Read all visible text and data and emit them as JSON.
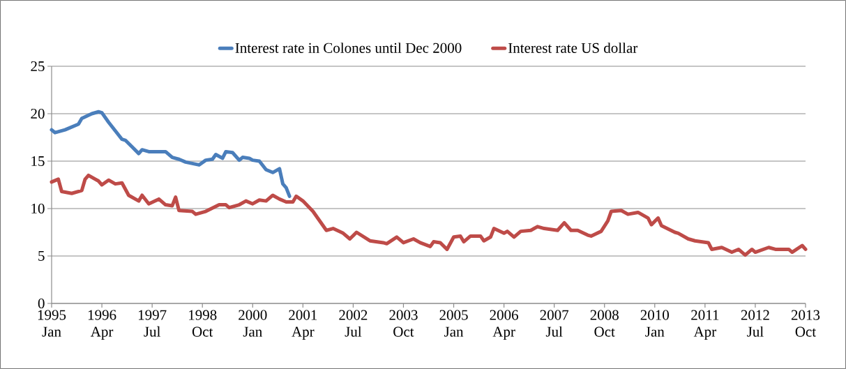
{
  "chart_data": {
    "type": "line",
    "xlim": [
      "1995-01",
      "2013-10"
    ],
    "xticks": [
      {
        "value": "1995-01",
        "label": "1995 Jan"
      },
      {
        "value": "1996-04",
        "label": "1996 Apr"
      },
      {
        "value": "1997-07",
        "label": "1997 Jul"
      },
      {
        "value": "1998-10",
        "label": "1998 Oct"
      },
      {
        "value": "2000-01",
        "label": "2000 Jan"
      },
      {
        "value": "2001-04",
        "label": "2001 Apr"
      },
      {
        "value": "2002-07",
        "label": "2002 Jul"
      },
      {
        "value": "2003-10",
        "label": "2003 Oct"
      },
      {
        "value": "2005-01",
        "label": "2005 Jan"
      },
      {
        "value": "2006-04",
        "label": "2006 Apr"
      },
      {
        "value": "2007-07",
        "label": "2007 Jul"
      },
      {
        "value": "2008-10",
        "label": "2008 Oct"
      },
      {
        "value": "2010-01",
        "label": "2010 Jan"
      },
      {
        "value": "2011-04",
        "label": "2011 Apr"
      },
      {
        "value": "2012-07",
        "label": "2012 Jul"
      },
      {
        "value": "2013-10",
        "label": "2013 Oct"
      }
    ],
    "ylim": [
      0,
      25
    ],
    "yticks": [
      0,
      5,
      10,
      15,
      20,
      25
    ],
    "grid": "y",
    "legend": "top",
    "marker": "none",
    "line_style": "solid",
    "series": [
      {
        "name": "Interest rate in Colones until Dec 2000",
        "color": "#4a7ebb",
        "x": [
          "1995-01",
          "1995-02",
          "1995-05",
          "1995-09",
          "1995-10",
          "1996-01",
          "1996-03",
          "1996-04",
          "1996-06",
          "1996-08",
          "1996-10",
          "1996-11",
          "1997-01",
          "1997-03",
          "1997-04",
          "1997-06",
          "1997-10",
          "1997-11",
          "1998-01",
          "1998-03",
          "1998-05",
          "1998-09",
          "1998-11",
          "1999-01",
          "1999-02",
          "1999-04",
          "1999-05",
          "1999-07",
          "1999-09",
          "1999-10",
          "1999-12",
          "2000-01",
          "2000-03",
          "2000-05",
          "2000-07",
          "2000-09",
          "2000-10",
          "2000-11",
          "2000-12"
        ],
        "values": [
          18.3,
          18.0,
          18.3,
          18.9,
          19.5,
          20.0,
          20.2,
          20.1,
          19.1,
          18.2,
          17.3,
          17.2,
          16.5,
          15.8,
          16.2,
          16.0,
          16.0,
          16.0,
          15.4,
          15.2,
          14.9,
          14.6,
          15.1,
          15.2,
          15.7,
          15.3,
          16.0,
          15.9,
          15.1,
          15.4,
          15.3,
          15.1,
          15.0,
          14.1,
          13.8,
          14.2,
          12.6,
          12.2,
          11.3
        ]
      },
      {
        "name": "Interest rate US dollar",
        "color": "#be4b48",
        "x": [
          "1995-01",
          "1995-03",
          "1995-04",
          "1995-07",
          "1995-10",
          "1995-11",
          "1995-12",
          "1996-03",
          "1996-04",
          "1996-06",
          "1996-08",
          "1996-10",
          "1996-12",
          "1997-03",
          "1997-04",
          "1997-06",
          "1997-09",
          "1997-11",
          "1998-01",
          "1998-02",
          "1998-03",
          "1998-07",
          "1998-08",
          "1998-11",
          "1999-03",
          "1999-05",
          "1999-06",
          "1999-09",
          "1999-11",
          "2000-01",
          "2000-03",
          "2000-05",
          "2000-07",
          "2000-09",
          "2000-11",
          "2001-01",
          "2001-02",
          "2001-04",
          "2001-07",
          "2001-11",
          "2002-01",
          "2002-04",
          "2002-06",
          "2002-08",
          "2002-12",
          "2003-04",
          "2003-05",
          "2003-08",
          "2003-10",
          "2004-01",
          "2004-03",
          "2004-06",
          "2004-07",
          "2004-09",
          "2004-11",
          "2005-01",
          "2005-03",
          "2005-04",
          "2005-06",
          "2005-09",
          "2005-10",
          "2005-12",
          "2006-01",
          "2006-04",
          "2006-05",
          "2006-07",
          "2006-09",
          "2006-12",
          "2007-02",
          "2007-04",
          "2007-08",
          "2007-10",
          "2007-12",
          "2008-02",
          "2008-05",
          "2008-06",
          "2008-09",
          "2008-11",
          "2008-12",
          "2009-03",
          "2009-05",
          "2009-08",
          "2009-11",
          "2009-12",
          "2010-02",
          "2010-03",
          "2010-07",
          "2010-08",
          "2010-11",
          "2011-01",
          "2011-03",
          "2011-05",
          "2011-06",
          "2011-09",
          "2011-12",
          "2012-02",
          "2012-04",
          "2012-06",
          "2012-07",
          "2012-11",
          "2013-01",
          "2013-05",
          "2013-06",
          "2013-09",
          "2013-10"
        ],
        "values": [
          12.8,
          13.1,
          11.8,
          11.6,
          11.9,
          13.1,
          13.5,
          12.9,
          12.5,
          13.0,
          12.6,
          12.7,
          11.4,
          10.8,
          11.4,
          10.5,
          11.0,
          10.4,
          10.3,
          11.2,
          9.8,
          9.7,
          9.4,
          9.7,
          10.4,
          10.4,
          10.1,
          10.4,
          10.8,
          10.5,
          10.9,
          10.8,
          11.4,
          11.0,
          10.7,
          10.7,
          11.3,
          10.8,
          9.7,
          7.7,
          7.9,
          7.4,
          6.8,
          7.5,
          6.6,
          6.4,
          6.3,
          7.0,
          6.4,
          6.8,
          6.4,
          6.0,
          6.5,
          6.4,
          5.7,
          7.0,
          7.1,
          6.5,
          7.1,
          7.1,
          6.6,
          7.0,
          7.9,
          7.4,
          7.6,
          7.0,
          7.6,
          7.7,
          8.1,
          7.9,
          7.7,
          8.5,
          7.7,
          7.7,
          7.2,
          7.1,
          7.6,
          8.7,
          9.7,
          9.8,
          9.4,
          9.6,
          9.0,
          8.3,
          9.0,
          8.2,
          7.5,
          7.4,
          6.8,
          6.6,
          6.5,
          6.4,
          5.7,
          5.9,
          5.4,
          5.7,
          5.1,
          5.7,
          5.4,
          5.9,
          5.7,
          5.7,
          5.4,
          6.1,
          5.7
        ]
      }
    ]
  }
}
